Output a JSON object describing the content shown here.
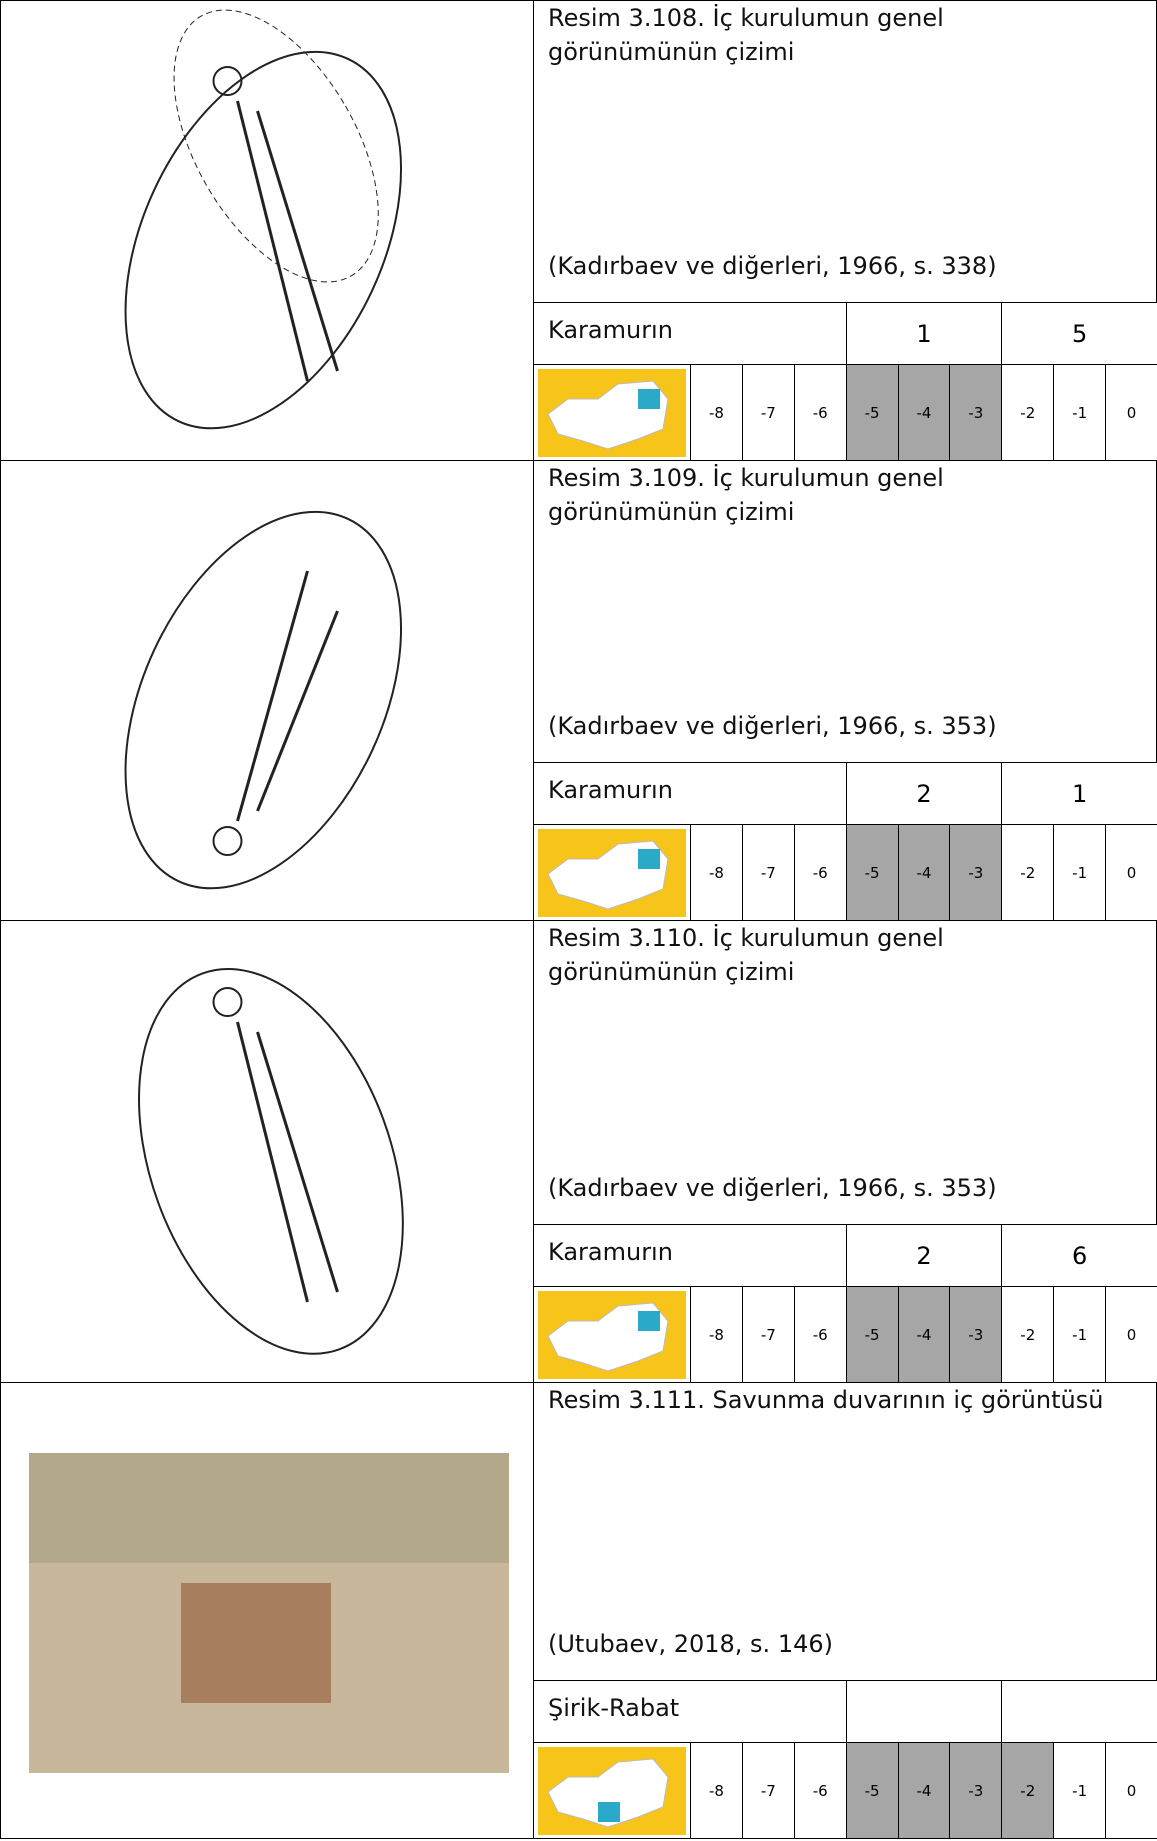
{
  "rows": [
    {
      "caption_lines": [
        "Resim 3.108. İç kurulumun genel",
        "görünümünün çizimi"
      ],
      "citation": "(Kadırbaev ve diğerleri, 1966, s. 338)",
      "site": "Karamurın",
      "num1": "1",
      "num2": "5",
      "shaded_columns": [
        3,
        4,
        5
      ]
    },
    {
      "caption_lines": [
        "Resim 3.109. İç kurulumun genel",
        "görünümünün çizimi"
      ],
      "citation": "(Kadırbaev ve diğerleri, 1966, s. 353)",
      "site": "Karamurın",
      "num1": "2",
      "num2": "1",
      "shaded_columns": [
        3,
        4,
        5
      ]
    },
    {
      "caption_lines": [
        "Resim 3.110. İç kurulumun genel",
        "görünümünün çizimi"
      ],
      "citation": "(Kadırbaev ve diğerleri, 1966, s. 353)",
      "site": "Karamurın",
      "num1": "2",
      "num2": "6",
      "shaded_columns": [
        3,
        4,
        5
      ]
    },
    {
      "caption_lines": [
        "Resim 3.111. Savunma duvarının iç görüntüsü"
      ],
      "citation": "(Utubaev, 2018, s. 146)",
      "site": "Şirik-Rabat",
      "shaded_columns": [
        3,
        4,
        5,
        6
      ]
    }
  ],
  "scale": [
    "-8",
    "-7",
    "-6",
    "-5",
    "-4",
    "-3",
    "-2",
    "-1",
    "0"
  ]
}
